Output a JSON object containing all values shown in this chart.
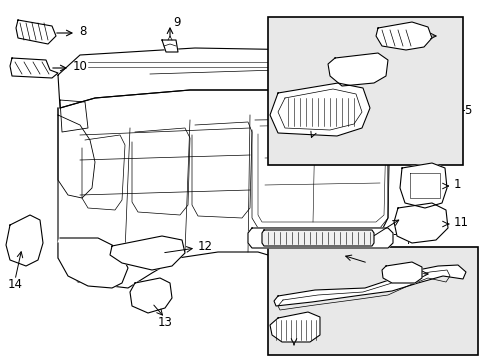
{
  "bg_color": "#ffffff",
  "line_color": "#000000",
  "box_fill": "#e8e8e8",
  "figsize": [
    4.89,
    3.6
  ],
  "dpi": 100
}
